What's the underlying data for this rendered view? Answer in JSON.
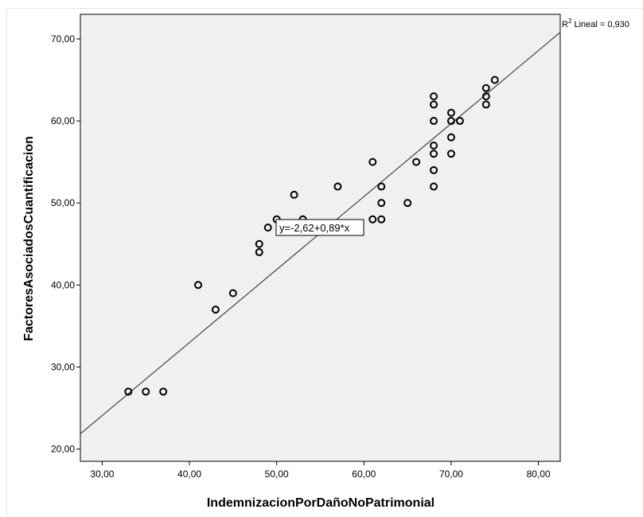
{
  "chart_data": {
    "type": "scatter",
    "xlabel": "IndemnizacionPorDañoNoPatrimonial",
    "ylabel": "FactoresAsociadosCuantificacion",
    "xlim": [
      27.5,
      82.5
    ],
    "ylim": [
      18.5,
      73.0
    ],
    "x_ticks": [
      "30,00",
      "40,00",
      "50,00",
      "60,00",
      "70,00",
      "80,00"
    ],
    "x_tick_values": [
      30,
      40,
      50,
      60,
      70,
      80
    ],
    "y_ticks": [
      "20,00",
      "30,00",
      "40,00",
      "50,00",
      "60,00",
      "70,00"
    ],
    "y_tick_values": [
      20,
      30,
      40,
      50,
      60,
      70
    ],
    "points": [
      {
        "x": 33,
        "y": 27
      },
      {
        "x": 35,
        "y": 27
      },
      {
        "x": 37,
        "y": 27
      },
      {
        "x": 41,
        "y": 40
      },
      {
        "x": 43,
        "y": 37
      },
      {
        "x": 45,
        "y": 39
      },
      {
        "x": 48,
        "y": 45
      },
      {
        "x": 48,
        "y": 44
      },
      {
        "x": 49,
        "y": 47
      },
      {
        "x": 50,
        "y": 48
      },
      {
        "x": 52,
        "y": 51
      },
      {
        "x": 53,
        "y": 48
      },
      {
        "x": 57,
        "y": 52
      },
      {
        "x": 61,
        "y": 55
      },
      {
        "x": 61,
        "y": 48
      },
      {
        "x": 62,
        "y": 52
      },
      {
        "x": 62,
        "y": 50
      },
      {
        "x": 62,
        "y": 48
      },
      {
        "x": 65,
        "y": 50
      },
      {
        "x": 66,
        "y": 55
      },
      {
        "x": 68,
        "y": 63
      },
      {
        "x": 68,
        "y": 62
      },
      {
        "x": 68,
        "y": 60
      },
      {
        "x": 68,
        "y": 57
      },
      {
        "x": 68,
        "y": 56
      },
      {
        "x": 68,
        "y": 54
      },
      {
        "x": 68,
        "y": 52
      },
      {
        "x": 70,
        "y": 61
      },
      {
        "x": 70,
        "y": 60
      },
      {
        "x": 70,
        "y": 58
      },
      {
        "x": 70,
        "y": 56
      },
      {
        "x": 71,
        "y": 60
      },
      {
        "x": 74,
        "y": 64
      },
      {
        "x": 74,
        "y": 63
      },
      {
        "x": 74,
        "y": 62
      },
      {
        "x": 75,
        "y": 65
      }
    ],
    "fit_line": {
      "intercept": -2.62,
      "slope": 0.89
    },
    "equation_label": "y=-2,62+0,89*x",
    "r2_prefix": "R",
    "r2_sup": "2",
    "r2_suffix": " Lineal = 0,930",
    "grid": false,
    "plot_background": "#f0f0f0",
    "marker_color": "#000000",
    "line_color": "#444444"
  }
}
